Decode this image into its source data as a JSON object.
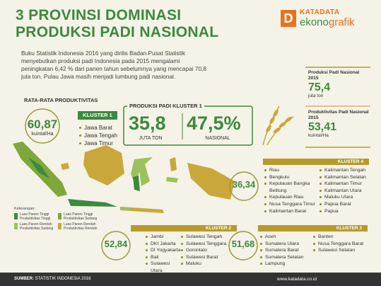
{
  "header": {
    "title_lines": [
      "3 PROVINSI DOMINASI",
      "PRODUKSI PADI NASIONAL"
    ],
    "brand": {
      "top": "KATADATA",
      "bottom_a": "ekono",
      "bottom_b": "grafik"
    }
  },
  "intro": "Buku Statistik Indonesia 2016 yang dirilis Badan Pusat Statistik menyebutkan produksi padi Indonesia pada 2015 mengalami peningkatan 6,42 % dari panen tahun sebelumnya yang mencapai 70,8 juta ton. Pulau Jawa masih menjadi lumbung padi nasional.",
  "national": {
    "production": {
      "label": "Produksi Padi Nasional 2015",
      "value": "75,4",
      "unit": "juta ton"
    },
    "productivity": {
      "label": "Produktivitas Padi Nasional 2015",
      "value": "53,41",
      "unit": "kuintal/Ha"
    }
  },
  "cluster1": {
    "avg_label": "RATA-RATA PRODUKTIVITAS",
    "avg": "60,87",
    "avg_unit": "kuintal/Ha",
    "label": "KLUSTER 1",
    "provinces": [
      "Jawa Barat",
      "Jawa Tengah",
      "Jawa Timur"
    ],
    "production_label": "PRODUKSI PADI KLUSTER 1",
    "production": "35,8",
    "production_unit": "JUTA TON",
    "share": "47,5%",
    "share_label": "NASIONAL"
  },
  "clusters": [
    {
      "label": "KLUSTER 4",
      "avg": "36,34",
      "columns": [
        [
          "Riau",
          "Bengkulu",
          "Kepulauan Bangka Belitung",
          "Kepulauan Riau",
          "Nusa Tenggara Timur",
          "Kalimantan Barat"
        ],
        [
          "Kalimantan Tengah",
          "Kalimantan Selatan",
          "Kalimantan Timur",
          "Kalimantan Utara",
          "Maluku Utara",
          "Papua Barat",
          "Papua"
        ]
      ]
    },
    {
      "label": "KLUSTER 2",
      "avg": "52,84",
      "columns": [
        [
          "Jambi",
          "DKI Jakarta",
          "DI Yogyakarta",
          "Bali",
          "Sulawesi Utara"
        ],
        [
          "Sulawesi Tengah",
          "Sulawesi Tenggara",
          "Gorontalo",
          "Sulawesi Barat",
          "Maluku"
        ]
      ]
    },
    {
      "label": "KLUSTER 3",
      "avg": "51,68",
      "columns": [
        [
          "Aceh",
          "Sumatera Utara",
          "Sumatera Barat",
          "Sumatera Selatan",
          "Lampung"
        ],
        [
          "Banten",
          "Nusa Tenggara Barat",
          "Sulawesi Selatan"
        ]
      ]
    }
  ],
  "legend": {
    "title": "Keterangan:",
    "items": [
      "Luas Panen Tinggi Produktivitas Tinggi",
      "Luas Panen Tinggi Produktivitas Sedang",
      "Luas Panen Rendah Produktivitas Sedang",
      "Luas Panen Rendah Produktivitas Rendah"
    ]
  },
  "footer": {
    "source_label": "SUMBER:",
    "source": "STATISTIK INDONESIA 2016",
    "url": "www.katadata.co.id"
  }
}
